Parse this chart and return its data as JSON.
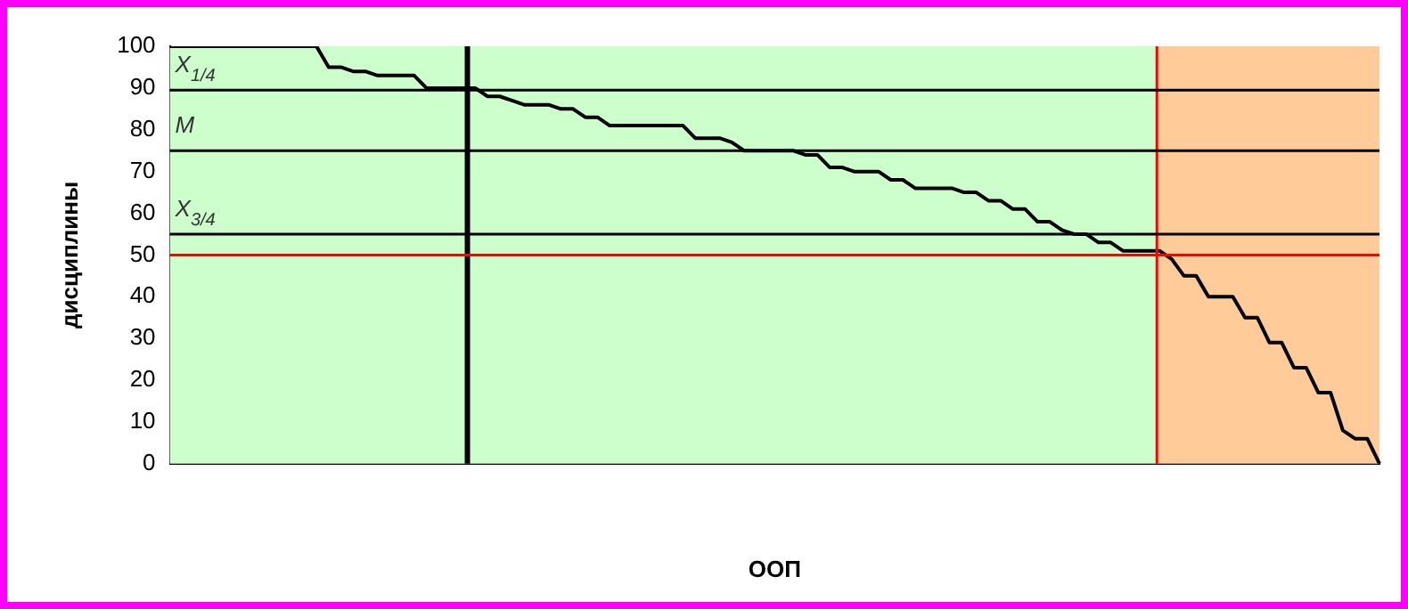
{
  "chart_data": {
    "type": "line",
    "xlabel": "ООП",
    "ylabel": "дисциплины",
    "categories": [
      null,
      null,
      null,
      null,
      null,
      null,
      null,
      null,
      null,
      null,
      null,
      null,
      null,
      null,
      null,
      null,
      null,
      null,
      null,
      null,
      null,
      null,
      null,
      null,
      null,
      null,
      null,
      null,
      null,
      null,
      null,
      null,
      null,
      null,
      null,
      null,
      null,
      null,
      null,
      null,
      null,
      null,
      null,
      null,
      null,
      null,
      null,
      null,
      null,
      null,
      null,
      null,
      null,
      null,
      null,
      null,
      null,
      null,
      null,
      null,
      null,
      null,
      null,
      null,
      null,
      null,
      null,
      null,
      null,
      null,
      null,
      null,
      null,
      null,
      null,
      null,
      null,
      null,
      null,
      null,
      null,
      null,
      null,
      null,
      null,
      null,
      null,
      null,
      null,
      null,
      null,
      null,
      null,
      null,
      null,
      null,
      null,
      null,
      null,
      null
    ],
    "series": [
      {
        "color": "#000000",
        "values": [
          100,
          100,
          100,
          100,
          100,
          100,
          100,
          100,
          100,
          100,
          100,
          100,
          100,
          95,
          95,
          94,
          94,
          93,
          93,
          93,
          93,
          90,
          90,
          90,
          90,
          90,
          88,
          88,
          87,
          86,
          86,
          86,
          85,
          85,
          83,
          83,
          81,
          81,
          81,
          81,
          81,
          81,
          81,
          78,
          78,
          78,
          77,
          75,
          75,
          75,
          75,
          75,
          74,
          74,
          71,
          71,
          70,
          70,
          70,
          68,
          68,
          66,
          66,
          66,
          66,
          65,
          65,
          63,
          63,
          61,
          61,
          58,
          58,
          56,
          55,
          55,
          53,
          53,
          51,
          51,
          51,
          51,
          49,
          45,
          45,
          40,
          40,
          40,
          35,
          35,
          29,
          29,
          23,
          23,
          17,
          17,
          8,
          6,
          6,
          0
        ]
      }
    ],
    "ylim": [
      0,
      100
    ],
    "yticks": [
      0,
      10,
      20,
      30,
      40,
      50,
      60,
      70,
      80,
      90,
      100
    ],
    "tick_labels": "y",
    "grid": false,
    "legend": false,
    "ref_lines": [
      {
        "axis": "y",
        "value": 89.5,
        "label": "X$_{1/4}$",
        "color": "#000000"
      },
      {
        "axis": "y",
        "value": 75,
        "label": "M",
        "color": "#000000"
      },
      {
        "axis": "y",
        "value": 55,
        "label": "X$_{3/4}$",
        "color": "#000000"
      },
      {
        "axis": "y",
        "value": 50,
        "label": null,
        "color": "#ff0000"
      }
    ]
  }
}
